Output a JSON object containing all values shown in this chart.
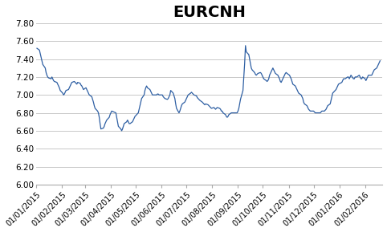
{
  "title": "EURCNH",
  "title_fontsize": 14,
  "title_fontweight": "bold",
  "line_color": "#2E5FA3",
  "line_width": 0.9,
  "ylim": [
    6.0,
    7.8
  ],
  "yticks": [
    6.0,
    6.2,
    6.4,
    6.6,
    6.8,
    7.0,
    7.2,
    7.4,
    7.6,
    7.8
  ],
  "background_color": "#ffffff",
  "grid_color": "#c8c8c8",
  "x_tick_labels": [
    "01/01/2015",
    "01/02/2015",
    "01/03/2015",
    "01/04/2015",
    "01/05/2015",
    "01/06/2015",
    "01/07/2015",
    "01/08/2015",
    "01/09/2015",
    "01/10/2015",
    "01/11/2015",
    "01/12/2015",
    "01/01/2016",
    "01/02/2016"
  ],
  "tick_label_fontsize": 7,
  "ytick_fontsize": 7.5,
  "data_points": [
    [
      "2015-01-02",
      7.52
    ],
    [
      "2015-01-05",
      7.5
    ],
    [
      "2015-01-06",
      7.46
    ],
    [
      "2015-01-07",
      7.42
    ],
    [
      "2015-01-08",
      7.38
    ],
    [
      "2015-01-09",
      7.34
    ],
    [
      "2015-01-12",
      7.3
    ],
    [
      "2015-01-13",
      7.25
    ],
    [
      "2015-01-14",
      7.22
    ],
    [
      "2015-01-15",
      7.2
    ],
    [
      "2015-01-16",
      7.19
    ],
    [
      "2015-01-19",
      7.18
    ],
    [
      "2015-01-20",
      7.2
    ],
    [
      "2015-01-21",
      7.18
    ],
    [
      "2015-01-22",
      7.16
    ],
    [
      "2015-01-23",
      7.15
    ],
    [
      "2015-01-26",
      7.14
    ],
    [
      "2015-01-27",
      7.12
    ],
    [
      "2015-01-28",
      7.1
    ],
    [
      "2015-01-29",
      7.08
    ],
    [
      "2015-01-30",
      7.05
    ],
    [
      "2015-02-02",
      7.02
    ],
    [
      "2015-02-03",
      7.0
    ],
    [
      "2015-02-04",
      7.01
    ],
    [
      "2015-02-05",
      7.03
    ],
    [
      "2015-02-06",
      7.05
    ],
    [
      "2015-02-09",
      7.06
    ],
    [
      "2015-02-10",
      7.08
    ],
    [
      "2015-02-11",
      7.1
    ],
    [
      "2015-02-12",
      7.12
    ],
    [
      "2015-02-13",
      7.14
    ],
    [
      "2015-02-16",
      7.15
    ],
    [
      "2015-02-17",
      7.14
    ],
    [
      "2015-02-18",
      7.13
    ],
    [
      "2015-02-19",
      7.12
    ],
    [
      "2015-02-20",
      7.14
    ],
    [
      "2015-02-23",
      7.13
    ],
    [
      "2015-02-24",
      7.11
    ],
    [
      "2015-02-25",
      7.1
    ],
    [
      "2015-02-26",
      7.08
    ],
    [
      "2015-02-27",
      7.06
    ],
    [
      "2015-03-02",
      7.08
    ],
    [
      "2015-03-03",
      7.06
    ],
    [
      "2015-03-04",
      7.04
    ],
    [
      "2015-03-05",
      7.02
    ],
    [
      "2015-03-06",
      7.0
    ],
    [
      "2015-03-09",
      6.98
    ],
    [
      "2015-03-10",
      6.95
    ],
    [
      "2015-03-11",
      6.92
    ],
    [
      "2015-03-12",
      6.88
    ],
    [
      "2015-03-13",
      6.85
    ],
    [
      "2015-03-16",
      6.82
    ],
    [
      "2015-03-17",
      6.8
    ],
    [
      "2015-03-18",
      6.75
    ],
    [
      "2015-03-19",
      6.68
    ],
    [
      "2015-03-20",
      6.62
    ],
    [
      "2015-03-23",
      6.63
    ],
    [
      "2015-03-24",
      6.65
    ],
    [
      "2015-03-25",
      6.68
    ],
    [
      "2015-03-26",
      6.7
    ],
    [
      "2015-03-27",
      6.72
    ],
    [
      "2015-03-30",
      6.75
    ],
    [
      "2015-03-31",
      6.78
    ],
    [
      "2015-04-01",
      6.8
    ],
    [
      "2015-04-02",
      6.82
    ],
    [
      "2015-04-07",
      6.8
    ],
    [
      "2015-04-08",
      6.75
    ],
    [
      "2015-04-09",
      6.7
    ],
    [
      "2015-04-10",
      6.65
    ],
    [
      "2015-04-13",
      6.62
    ],
    [
      "2015-04-14",
      6.6
    ],
    [
      "2015-04-15",
      6.62
    ],
    [
      "2015-04-16",
      6.65
    ],
    [
      "2015-04-17",
      6.68
    ],
    [
      "2015-04-20",
      6.7
    ],
    [
      "2015-04-21",
      6.72
    ],
    [
      "2015-04-22",
      6.7
    ],
    [
      "2015-04-23",
      6.68
    ],
    [
      "2015-04-24",
      6.68
    ],
    [
      "2015-04-27",
      6.7
    ],
    [
      "2015-04-28",
      6.72
    ],
    [
      "2015-04-29",
      6.74
    ],
    [
      "2015-04-30",
      6.76
    ],
    [
      "2015-05-04",
      6.8
    ],
    [
      "2015-05-05",
      6.84
    ],
    [
      "2015-05-06",
      6.88
    ],
    [
      "2015-05-07",
      6.92
    ],
    [
      "2015-05-08",
      6.96
    ],
    [
      "2015-05-11",
      7.0
    ],
    [
      "2015-05-12",
      7.05
    ],
    [
      "2015-05-13",
      7.08
    ],
    [
      "2015-05-14",
      7.1
    ],
    [
      "2015-05-15",
      7.08
    ],
    [
      "2015-05-18",
      7.06
    ],
    [
      "2015-05-19",
      7.04
    ],
    [
      "2015-05-20",
      7.02
    ],
    [
      "2015-05-21",
      7.0
    ],
    [
      "2015-05-22",
      7.0
    ],
    [
      "2015-05-25",
      7.0
    ],
    [
      "2015-05-26",
      7.0
    ],
    [
      "2015-05-27",
      7.01
    ],
    [
      "2015-05-28",
      7.01
    ],
    [
      "2015-05-29",
      7.0
    ],
    [
      "2015-06-01",
      7.0
    ],
    [
      "2015-06-02",
      7.0
    ],
    [
      "2015-06-03",
      6.98
    ],
    [
      "2015-06-04",
      6.97
    ],
    [
      "2015-06-05",
      6.96
    ],
    [
      "2015-06-08",
      6.95
    ],
    [
      "2015-06-09",
      6.96
    ],
    [
      "2015-06-10",
      6.98
    ],
    [
      "2015-06-11",
      7.0
    ],
    [
      "2015-06-12",
      7.05
    ],
    [
      "2015-06-15",
      7.02
    ],
    [
      "2015-06-16",
      6.99
    ],
    [
      "2015-06-17",
      6.96
    ],
    [
      "2015-06-18",
      6.9
    ],
    [
      "2015-06-19",
      6.85
    ],
    [
      "2015-06-22",
      6.8
    ],
    [
      "2015-06-23",
      6.82
    ],
    [
      "2015-06-24",
      6.85
    ],
    [
      "2015-06-25",
      6.88
    ],
    [
      "2015-06-26",
      6.9
    ],
    [
      "2015-06-29",
      6.92
    ],
    [
      "2015-06-30",
      6.94
    ],
    [
      "2015-07-01",
      6.96
    ],
    [
      "2015-07-02",
      6.98
    ],
    [
      "2015-07-03",
      7.0
    ],
    [
      "2015-07-06",
      7.02
    ],
    [
      "2015-07-07",
      7.03
    ],
    [
      "2015-07-08",
      7.02
    ],
    [
      "2015-07-09",
      7.01
    ],
    [
      "2015-07-10",
      7.0
    ],
    [
      "2015-07-13",
      6.99
    ],
    [
      "2015-07-14",
      6.97
    ],
    [
      "2015-07-15",
      6.96
    ],
    [
      "2015-07-16",
      6.95
    ],
    [
      "2015-07-17",
      6.94
    ],
    [
      "2015-07-20",
      6.92
    ],
    [
      "2015-07-21",
      6.91
    ],
    [
      "2015-07-22",
      6.9
    ],
    [
      "2015-07-23",
      6.89
    ],
    [
      "2015-07-24",
      6.9
    ],
    [
      "2015-07-27",
      6.89
    ],
    [
      "2015-07-28",
      6.88
    ],
    [
      "2015-07-29",
      6.87
    ],
    [
      "2015-07-30",
      6.86
    ],
    [
      "2015-07-31",
      6.85
    ],
    [
      "2015-08-03",
      6.86
    ],
    [
      "2015-08-04",
      6.85
    ],
    [
      "2015-08-05",
      6.84
    ],
    [
      "2015-08-06",
      6.85
    ],
    [
      "2015-08-07",
      6.86
    ],
    [
      "2015-08-10",
      6.85
    ],
    [
      "2015-08-11",
      6.84
    ],
    [
      "2015-08-12",
      6.82
    ],
    [
      "2015-08-13",
      6.82
    ],
    [
      "2015-08-14",
      6.8
    ],
    [
      "2015-08-17",
      6.78
    ],
    [
      "2015-08-18",
      6.76
    ],
    [
      "2015-08-19",
      6.75
    ],
    [
      "2015-08-20",
      6.76
    ],
    [
      "2015-08-21",
      6.78
    ],
    [
      "2015-08-24",
      6.8
    ],
    [
      "2015-08-25",
      6.8
    ],
    [
      "2015-08-26",
      6.8
    ],
    [
      "2015-08-27",
      6.8
    ],
    [
      "2015-08-28",
      6.8
    ],
    [
      "2015-08-31",
      6.8
    ],
    [
      "2015-09-01",
      6.82
    ],
    [
      "2015-09-02",
      6.85
    ],
    [
      "2015-09-03",
      6.9
    ],
    [
      "2015-09-04",
      6.95
    ],
    [
      "2015-09-07",
      7.05
    ],
    [
      "2015-09-08",
      7.2
    ],
    [
      "2015-09-09",
      7.35
    ],
    [
      "2015-09-10",
      7.55
    ],
    [
      "2015-09-11",
      7.48
    ],
    [
      "2015-09-14",
      7.45
    ],
    [
      "2015-09-15",
      7.4
    ],
    [
      "2015-09-16",
      7.35
    ],
    [
      "2015-09-17",
      7.3
    ],
    [
      "2015-09-18",
      7.28
    ],
    [
      "2015-09-21",
      7.25
    ],
    [
      "2015-09-22",
      7.23
    ],
    [
      "2015-09-23",
      7.22
    ],
    [
      "2015-09-24",
      7.23
    ],
    [
      "2015-09-25",
      7.24
    ],
    [
      "2015-09-28",
      7.25
    ],
    [
      "2015-09-29",
      7.24
    ],
    [
      "2015-09-30",
      7.22
    ],
    [
      "2015-10-01",
      7.2
    ],
    [
      "2015-10-02",
      7.18
    ],
    [
      "2015-10-05",
      7.16
    ],
    [
      "2015-10-06",
      7.15
    ],
    [
      "2015-10-07",
      7.16
    ],
    [
      "2015-10-08",
      7.18
    ],
    [
      "2015-10-09",
      7.22
    ],
    [
      "2015-10-12",
      7.28
    ],
    [
      "2015-10-13",
      7.3
    ],
    [
      "2015-10-14",
      7.28
    ],
    [
      "2015-10-15",
      7.26
    ],
    [
      "2015-10-16",
      7.24
    ],
    [
      "2015-10-19",
      7.22
    ],
    [
      "2015-10-20",
      7.2
    ],
    [
      "2015-10-21",
      7.18
    ],
    [
      "2015-10-22",
      7.15
    ],
    [
      "2015-10-23",
      7.14
    ],
    [
      "2015-10-26",
      7.2
    ],
    [
      "2015-10-27",
      7.22
    ],
    [
      "2015-10-28",
      7.24
    ],
    [
      "2015-10-29",
      7.25
    ],
    [
      "2015-10-30",
      7.24
    ],
    [
      "2015-11-02",
      7.22
    ],
    [
      "2015-11-03",
      7.2
    ],
    [
      "2015-11-04",
      7.18
    ],
    [
      "2015-11-05",
      7.15
    ],
    [
      "2015-11-06",
      7.12
    ],
    [
      "2015-11-09",
      7.1
    ],
    [
      "2015-11-10",
      7.08
    ],
    [
      "2015-11-11",
      7.06
    ],
    [
      "2015-11-12",
      7.04
    ],
    [
      "2015-11-13",
      7.02
    ],
    [
      "2015-11-16",
      7.0
    ],
    [
      "2015-11-17",
      6.98
    ],
    [
      "2015-11-18",
      6.96
    ],
    [
      "2015-11-19",
      6.92
    ],
    [
      "2015-11-20",
      6.9
    ],
    [
      "2015-11-23",
      6.88
    ],
    [
      "2015-11-24",
      6.86
    ],
    [
      "2015-11-25",
      6.84
    ],
    [
      "2015-11-26",
      6.83
    ],
    [
      "2015-11-27",
      6.82
    ],
    [
      "2015-11-30",
      6.82
    ],
    [
      "2015-12-01",
      6.82
    ],
    [
      "2015-12-02",
      6.81
    ],
    [
      "2015-12-03",
      6.8
    ],
    [
      "2015-12-04",
      6.8
    ],
    [
      "2015-12-07",
      6.8
    ],
    [
      "2015-12-08",
      6.8
    ],
    [
      "2015-12-09",
      6.8
    ],
    [
      "2015-12-10",
      6.81
    ],
    [
      "2015-12-11",
      6.82
    ],
    [
      "2015-12-14",
      6.82
    ],
    [
      "2015-12-15",
      6.83
    ],
    [
      "2015-12-16",
      6.84
    ],
    [
      "2015-12-17",
      6.86
    ],
    [
      "2015-12-18",
      6.88
    ],
    [
      "2015-12-21",
      6.9
    ],
    [
      "2015-12-22",
      6.94
    ],
    [
      "2015-12-23",
      6.98
    ],
    [
      "2015-12-24",
      7.02
    ],
    [
      "2015-12-28",
      7.06
    ],
    [
      "2015-12-29",
      7.08
    ],
    [
      "2015-12-30",
      7.1
    ],
    [
      "2015-12-31",
      7.12
    ],
    [
      "2016-01-04",
      7.14
    ],
    [
      "2016-01-05",
      7.16
    ],
    [
      "2016-01-06",
      7.18
    ],
    [
      "2016-01-07",
      7.18
    ],
    [
      "2016-01-08",
      7.18
    ],
    [
      "2016-01-11",
      7.2
    ],
    [
      "2016-01-12",
      7.2
    ],
    [
      "2016-01-13",
      7.18
    ],
    [
      "2016-01-14",
      7.2
    ],
    [
      "2016-01-15",
      7.22
    ],
    [
      "2016-01-18",
      7.18
    ],
    [
      "2016-01-19",
      7.18
    ],
    [
      "2016-01-20",
      7.2
    ],
    [
      "2016-01-21",
      7.2
    ],
    [
      "2016-01-22",
      7.2
    ],
    [
      "2016-01-25",
      7.22
    ],
    [
      "2016-01-26",
      7.2
    ],
    [
      "2016-01-27",
      7.18
    ],
    [
      "2016-01-28",
      7.18
    ],
    [
      "2016-01-29",
      7.2
    ],
    [
      "2016-02-01",
      7.18
    ],
    [
      "2016-02-02",
      7.16
    ],
    [
      "2016-02-03",
      7.18
    ],
    [
      "2016-02-04",
      7.2
    ],
    [
      "2016-02-05",
      7.22
    ],
    [
      "2016-02-08",
      7.22
    ],
    [
      "2016-02-09",
      7.22
    ],
    [
      "2016-02-10",
      7.24
    ],
    [
      "2016-02-11",
      7.26
    ],
    [
      "2016-02-12",
      7.28
    ],
    [
      "2016-02-15",
      7.3
    ],
    [
      "2016-02-16",
      7.32
    ],
    [
      "2016-02-17",
      7.34
    ],
    [
      "2016-02-18",
      7.36
    ],
    [
      "2016-02-19",
      7.38
    ]
  ]
}
